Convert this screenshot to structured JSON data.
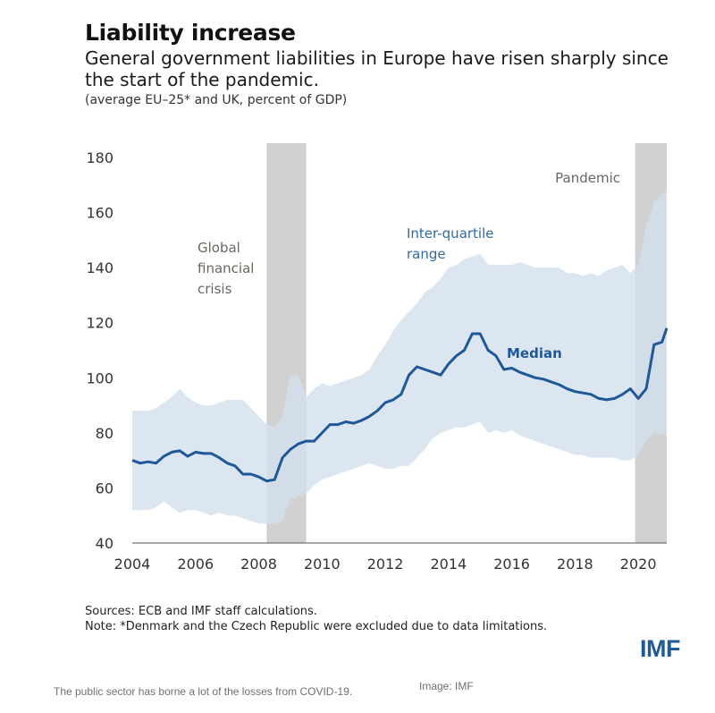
{
  "header": {
    "title": "Liability increase",
    "subtitle": "General government liabilities in Europe have risen sharply since the start of the pandemic.",
    "units": "(average EU–25* and UK, percent of GDP)"
  },
  "footer": {
    "sources": "Sources: ECB and IMF staff calculations.",
    "note": "Note: *Denmark and the Czech Republic were excluded due to data limitations.",
    "logo": "IMF",
    "caption": "The public sector has borne a lot of the losses from COVID-19.",
    "credit": "Image: IMF"
  },
  "chart_data": {
    "type": "area",
    "xlim": [
      2004,
      2020.9
    ],
    "ylim": [
      40,
      180
    ],
    "x_ticks": [
      2004,
      2006,
      2008,
      2010,
      2012,
      2014,
      2016,
      2018,
      2020
    ],
    "x_tick_labels": [
      "2004",
      "2006",
      "2008",
      "2010",
      "2012",
      "2014",
      "2016",
      "2018",
      "2020"
    ],
    "y_ticks": [
      40,
      60,
      80,
      100,
      120,
      140,
      160,
      180
    ],
    "y_tick_labels": [
      "40",
      "60",
      "80",
      "100",
      "120",
      "140",
      "160",
      "180"
    ],
    "grid": false,
    "colors": {
      "band": "#d3e0ee",
      "median": "#1e5899",
      "shade": "#d1d1d1",
      "annotation_gray": "#6b6560",
      "annotation_blue": "#2e6aa8"
    },
    "shaded_periods": [
      {
        "label": "Global financial crisis",
        "label_lines": [
          "Global",
          "financial",
          "crisis"
        ],
        "x_start": 2008.25,
        "x_end": 2009.5
      },
      {
        "label": "Pandemic",
        "label_lines": [
          "Pandemic"
        ],
        "x_start": 2019.9,
        "x_end": 2020.9
      }
    ],
    "series": [
      {
        "name": "Inter-quartile range",
        "label_lines": [
          "Inter-quartile",
          "range"
        ],
        "type": "band",
        "x": [
          2004,
          2004.5,
          2004.75,
          2005,
          2005.25,
          2005.5,
          2005.75,
          2006,
          2006.25,
          2006.5,
          2006.75,
          2007,
          2007.25,
          2007.5,
          2007.75,
          2008,
          2008.25,
          2008.5,
          2008.75,
          2009,
          2009.25,
          2009.5,
          2009.75,
          2010,
          2010.25,
          2010.5,
          2010.75,
          2011,
          2011.25,
          2011.5,
          2011.75,
          2012,
          2012.25,
          2012.5,
          2012.75,
          2013,
          2013.25,
          2013.5,
          2013.75,
          2014,
          2014.25,
          2014.5,
          2014.75,
          2015,
          2015.25,
          2015.5,
          2015.75,
          2016,
          2016.25,
          2016.5,
          2016.75,
          2017,
          2017.25,
          2017.5,
          2017.75,
          2018,
          2018.25,
          2018.5,
          2018.75,
          2019,
          2019.25,
          2019.5,
          2019.75,
          2020,
          2020.25,
          2020.5,
          2020.9
        ],
        "upper": [
          88,
          88,
          89,
          91,
          93,
          96,
          93,
          91,
          90,
          90,
          91,
          92,
          92,
          92,
          89,
          86,
          83,
          82,
          86,
          101,
          101,
          93,
          96,
          98,
          97,
          98,
          99,
          100,
          101,
          103,
          108,
          112,
          117,
          121,
          124,
          127,
          131,
          133,
          136,
          140,
          141,
          143,
          144,
          145,
          141,
          141,
          141,
          141,
          142,
          141,
          140,
          140,
          140,
          140,
          138,
          138,
          137,
          138,
          137,
          139,
          140,
          141,
          138,
          141,
          155,
          164,
          168
        ],
        "lower": [
          52,
          52,
          53,
          55,
          53,
          51,
          52,
          52,
          51,
          50,
          51,
          50,
          50,
          49,
          48,
          47,
          47,
          47,
          48,
          56,
          57,
          58,
          61,
          63,
          64,
          65,
          66,
          67,
          68,
          69,
          68,
          67,
          67,
          68,
          68,
          71,
          74,
          78,
          80,
          81,
          82,
          82,
          83,
          84,
          80,
          81,
          80,
          81,
          79,
          78,
          77,
          76,
          75,
          74,
          73,
          72,
          72,
          71,
          71,
          71,
          71,
          70,
          70,
          72,
          77,
          80,
          79
        ]
      },
      {
        "name": "Median",
        "type": "line",
        "x": [
          2004,
          2004.25,
          2004.5,
          2004.75,
          2005,
          2005.25,
          2005.5,
          2005.75,
          2006,
          2006.25,
          2006.5,
          2006.75,
          2007,
          2007.25,
          2007.5,
          2007.75,
          2008,
          2008.25,
          2008.5,
          2008.75,
          2009,
          2009.25,
          2009.5,
          2009.75,
          2010,
          2010.25,
          2010.5,
          2010.75,
          2011,
          2011.25,
          2011.5,
          2011.75,
          2012,
          2012.25,
          2012.5,
          2012.75,
          2013,
          2013.25,
          2013.5,
          2013.75,
          2014,
          2014.25,
          2014.5,
          2014.75,
          2015,
          2015.25,
          2015.5,
          2015.75,
          2016,
          2016.25,
          2016.5,
          2016.75,
          2017,
          2017.25,
          2017.5,
          2017.75,
          2018,
          2018.25,
          2018.5,
          2018.75,
          2019,
          2019.25,
          2019.5,
          2019.75,
          2020,
          2020.25,
          2020.5,
          2020.75,
          2020.9
        ],
        "values": [
          70,
          69,
          69.5,
          69,
          71.5,
          73,
          73.5,
          71.5,
          73,
          72.5,
          72.5,
          71,
          69,
          68,
          65,
          65,
          64,
          62.5,
          63,
          71,
          74,
          76,
          77,
          77,
          80,
          83,
          83,
          84,
          83.5,
          84.5,
          86,
          88,
          91,
          92,
          94,
          101,
          104,
          103,
          102,
          101,
          105,
          108,
          110,
          116,
          116,
          110,
          108,
          103,
          103.5,
          102,
          101,
          100,
          99.5,
          98.5,
          97.5,
          96,
          95,
          94.5,
          94,
          92.5,
          92,
          92.5,
          94,
          96,
          92.5,
          96,
          112,
          113,
          118
        ]
      }
    ]
  }
}
